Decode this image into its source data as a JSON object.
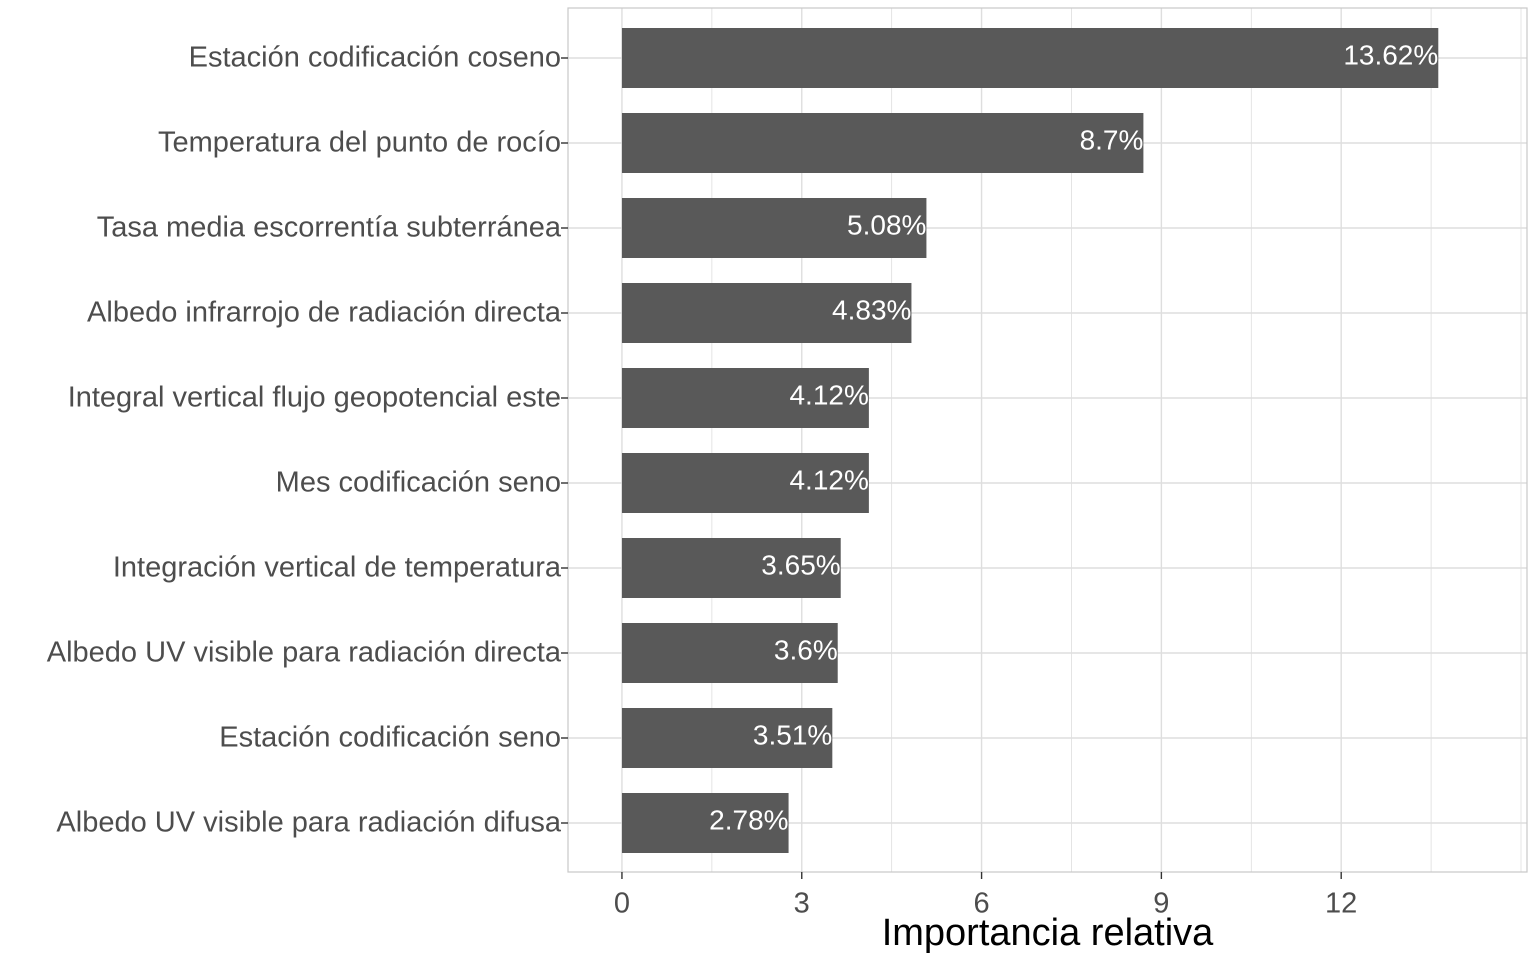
{
  "chart_data": {
    "type": "bar",
    "orientation": "horizontal",
    "xlabel": "Importancia relativa",
    "ylabel": "",
    "xlim": [
      -0.9,
      15.1
    ],
    "x_ticks": [
      0,
      3,
      6,
      9,
      12
    ],
    "grid": true,
    "legend": "none",
    "value_label_suffix": "%",
    "categories": [
      "Estación codificación coseno",
      "Temperatura del punto de rocío",
      "Tasa media escorrentía subterránea",
      "Albedo infrarrojo de radiación directa",
      "Integral vertical flujo geopotencial este",
      "Mes codificación seno",
      "Integración vertical de temperatura",
      "Albedo UV visible para radiación directa",
      "Estación codificación seno",
      "Albedo UV visible para radiación difusa"
    ],
    "values": [
      13.62,
      8.7,
      5.08,
      4.83,
      4.12,
      4.12,
      3.65,
      3.6,
      3.51,
      2.78
    ],
    "value_labels": [
      "13.62%",
      "8.7%",
      "5.08%",
      "4.83%",
      "4.12%",
      "4.12%",
      "3.65%",
      "3.6%",
      "3.51%",
      "2.78%"
    ],
    "colors": {
      "bar": "#595959",
      "grid": "#dedede",
      "panel_border": "#c8c8c8",
      "axis_text": "#4d4d4d",
      "value_text": "#ffffff"
    }
  }
}
